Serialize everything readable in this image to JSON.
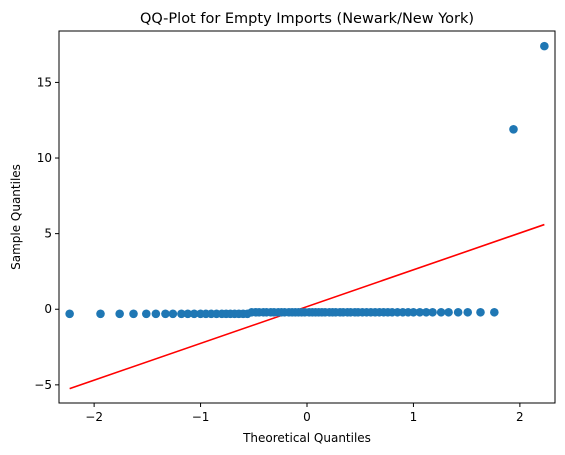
{
  "chart_data": {
    "type": "scatter",
    "title": "QQ-Plot for Empty Imports (Newark/New York)",
    "xlabel": "Theoretical Quantiles",
    "ylabel": "Sample Quantiles",
    "xlim": [
      -2.33,
      2.33
    ],
    "ylim": [
      -6.2,
      18.4
    ],
    "xticks": [
      -2,
      -1,
      0,
      1,
      2
    ],
    "xtick_labels": [
      "−2",
      "−1",
      "0",
      "1",
      "2"
    ],
    "yticks": [
      -5,
      0,
      5,
      10,
      15
    ],
    "ytick_labels": [
      "−5",
      "0",
      "5",
      "10",
      "15"
    ],
    "grid": false,
    "legend": "none",
    "points_color": "#1f77b4",
    "line_color": "#ff0000",
    "series": [
      {
        "kind": "points",
        "x": [
          -2.23,
          -1.94,
          -1.76,
          -1.63,
          -1.51,
          -1.42,
          -1.33,
          -1.26,
          -1.18,
          -1.12,
          -1.06,
          -1.0,
          -0.95,
          -0.9,
          -0.85,
          -0.8,
          -0.76,
          -0.72,
          -0.68,
          -0.64,
          -0.6,
          -0.56,
          -0.52,
          -0.48,
          -0.45,
          -0.41,
          -0.38,
          -0.34,
          -0.31,
          -0.27,
          -0.24,
          -0.21,
          -0.17,
          -0.14,
          -0.11,
          -0.08,
          -0.05,
          -0.02,
          0.02,
          0.05,
          0.08,
          0.11,
          0.14,
          0.17,
          0.21,
          0.24,
          0.27,
          0.31,
          0.34,
          0.38,
          0.41,
          0.45,
          0.48,
          0.52,
          0.56,
          0.6,
          0.64,
          0.68,
          0.72,
          0.76,
          0.8,
          0.85,
          0.9,
          0.95,
          1.0,
          1.06,
          1.12,
          1.18,
          1.26,
          1.33,
          1.42,
          1.51,
          1.63,
          1.76,
          1.94,
          2.23
        ],
        "y": [
          -0.3,
          -0.3,
          -0.3,
          -0.3,
          -0.3,
          -0.3,
          -0.3,
          -0.3,
          -0.3,
          -0.3,
          -0.3,
          -0.3,
          -0.3,
          -0.3,
          -0.3,
          -0.3,
          -0.3,
          -0.3,
          -0.3,
          -0.3,
          -0.3,
          -0.3,
          -0.2,
          -0.2,
          -0.2,
          -0.2,
          -0.2,
          -0.2,
          -0.2,
          -0.2,
          -0.2,
          -0.2,
          -0.2,
          -0.2,
          -0.2,
          -0.2,
          -0.2,
          -0.2,
          -0.2,
          -0.2,
          -0.2,
          -0.2,
          -0.2,
          -0.2,
          -0.2,
          -0.2,
          -0.2,
          -0.2,
          -0.2,
          -0.2,
          -0.2,
          -0.2,
          -0.2,
          -0.2,
          -0.2,
          -0.2,
          -0.2,
          -0.2,
          -0.2,
          -0.2,
          -0.2,
          -0.2,
          -0.2,
          -0.2,
          -0.2,
          -0.2,
          -0.2,
          -0.2,
          -0.2,
          -0.2,
          -0.2,
          -0.2,
          -0.2,
          -0.2,
          11.9,
          17.4
        ]
      },
      {
        "kind": "line",
        "x": [
          -2.23,
          2.23
        ],
        "y": [
          -5.25,
          5.6
        ]
      }
    ]
  }
}
